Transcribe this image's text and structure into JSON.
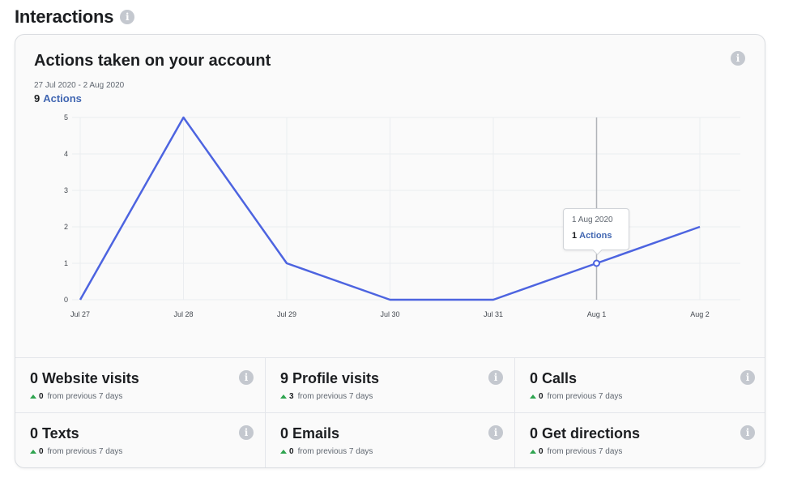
{
  "section": {
    "title": "Interactions"
  },
  "card": {
    "title": "Actions taken on your account",
    "date_range": "27 Jul 2020 - 2 Aug 2020",
    "total_value": "9",
    "total_label": "Actions"
  },
  "tooltip": {
    "date": "1 Aug 2020",
    "value": "1",
    "label": "Actions"
  },
  "chart_data": {
    "type": "line",
    "title": "",
    "xlabel": "",
    "ylabel": "",
    "categories": [
      "Jul 27",
      "Jul 28",
      "Jul 29",
      "Jul 30",
      "Jul 31",
      "Aug 1",
      "Aug 2"
    ],
    "values": [
      0,
      5,
      1,
      0,
      0,
      1,
      2
    ],
    "ylim": [
      0,
      5
    ],
    "yticks": [
      0,
      1,
      2,
      3,
      4,
      5
    ],
    "grid": true,
    "highlight_index": 5,
    "line_color": "#4d64e0"
  },
  "metrics": [
    {
      "title": "0 Website visits",
      "change": "0",
      "suffix": "from previous 7 days"
    },
    {
      "title": "9 Profile visits",
      "change": "3",
      "suffix": "from previous 7 days"
    },
    {
      "title": "0 Calls",
      "change": "0",
      "suffix": "from previous 7 days"
    },
    {
      "title": "0 Texts",
      "change": "0",
      "suffix": "from previous 7 days"
    },
    {
      "title": "0 Emails",
      "change": "0",
      "suffix": "from previous 7 days"
    },
    {
      "title": "0 Get directions",
      "change": "0",
      "suffix": "from previous 7 days"
    }
  ],
  "colors": {
    "accent": "#4267b2",
    "positive": "#2ea44f"
  },
  "icons": {
    "info": "info-icon"
  }
}
